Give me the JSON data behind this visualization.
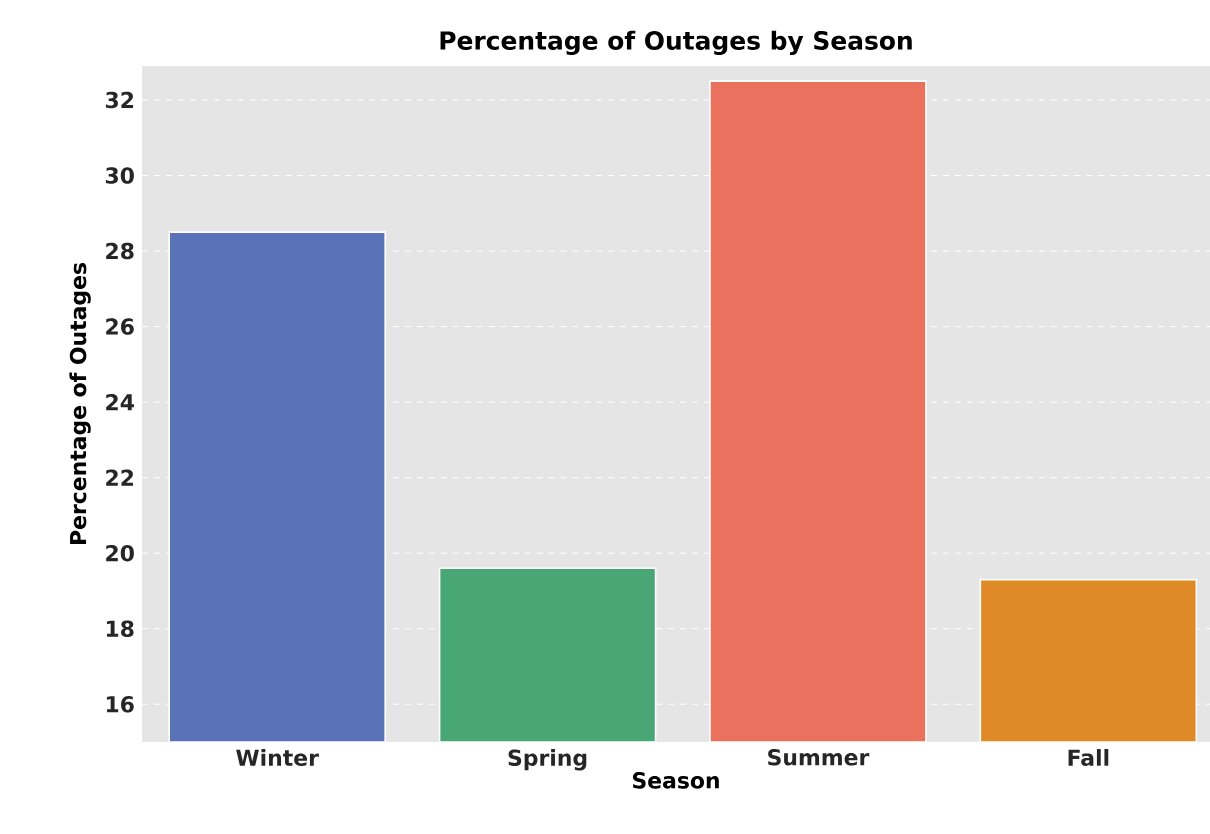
{
  "chart_data": {
    "type": "bar",
    "title": "Percentage of Outages by Season",
    "xlabel": "Season",
    "ylabel": "Percentage of Outages",
    "categories": [
      "Winter",
      "Spring",
      "Summer",
      "Fall"
    ],
    "values": [
      28.5,
      19.6,
      32.5,
      19.3
    ],
    "colors": [
      "#5972b8",
      "#49a675",
      "#e9715e",
      "#df8a26"
    ],
    "ylim": [
      15,
      32.9
    ],
    "yticks": [
      16,
      18,
      20,
      22,
      24,
      26,
      28,
      30,
      32
    ],
    "grid": "y"
  }
}
